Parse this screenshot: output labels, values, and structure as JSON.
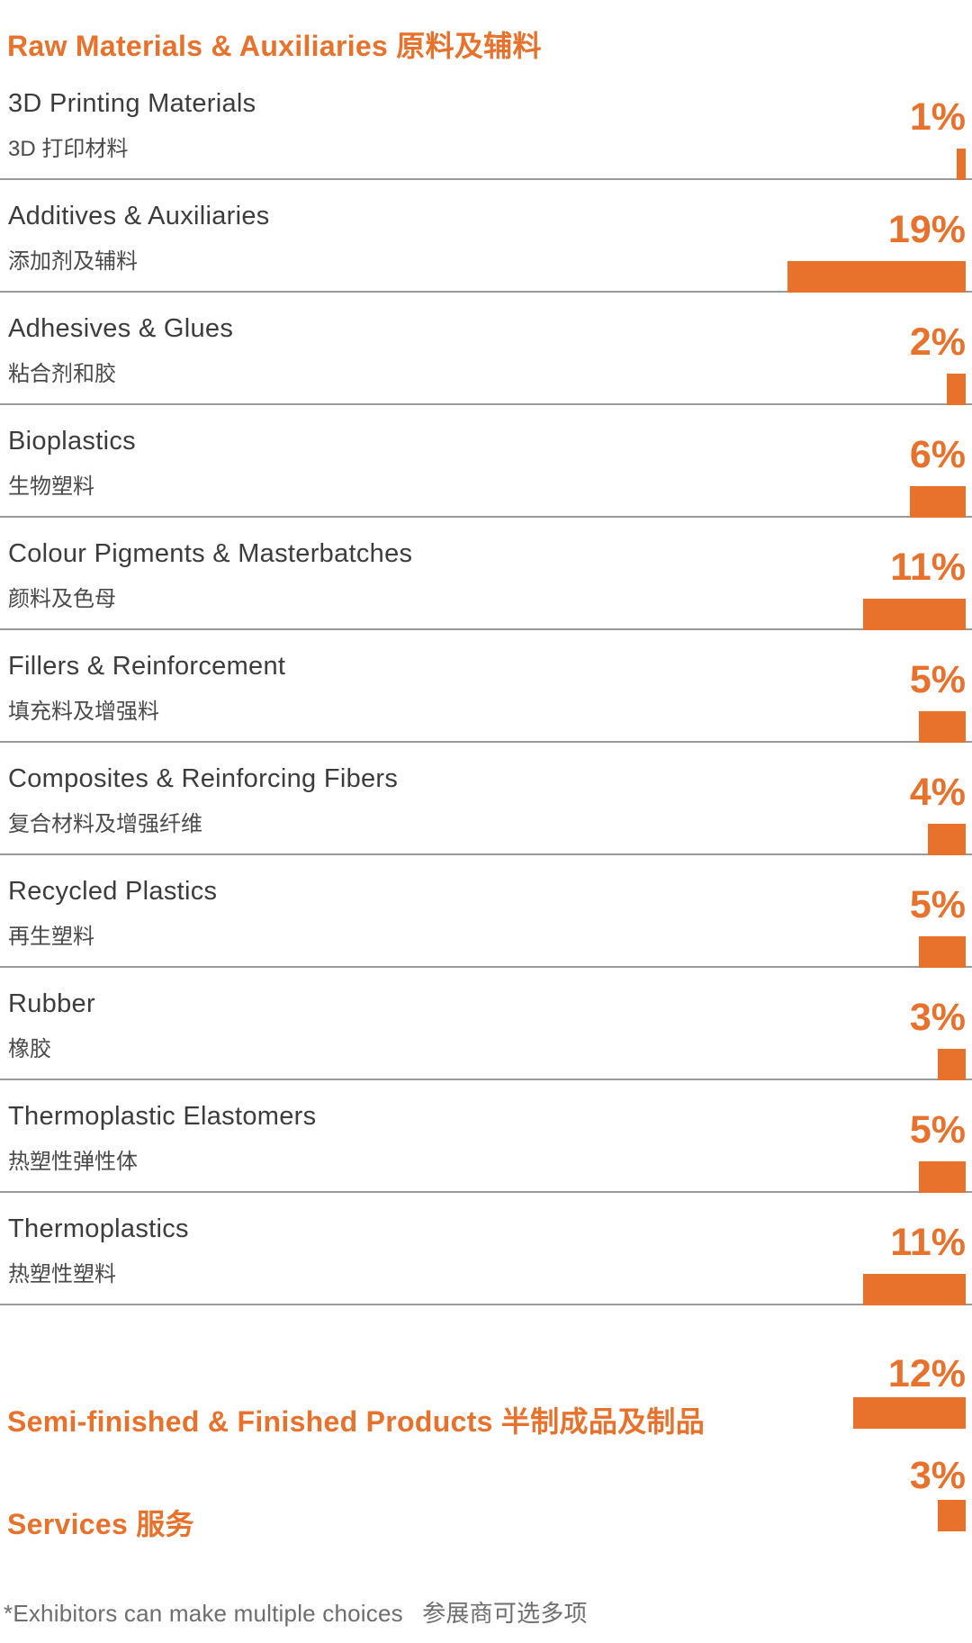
{
  "header": {
    "title": "Raw Materials & Auxiliaries 原料及辅料"
  },
  "colors": {
    "accent": "#E8712B",
    "row_title_text": "#3C3C3C",
    "row_subtitle_text": "#4A4A4A",
    "separator": "#9A9A9A",
    "footnote_text": "#6E6E6E"
  },
  "rows": [
    {
      "en": "3D Printing Materials",
      "zh": "3D 打印材料",
      "pct": 1,
      "pct_label": "1%"
    },
    {
      "en": "Additives & Auxiliaries",
      "zh": "添加剂及辅料",
      "pct": 19,
      "pct_label": "19%"
    },
    {
      "en": "Adhesives & Glues",
      "zh": "粘合剂和胶",
      "pct": 2,
      "pct_label": "2%"
    },
    {
      "en": "Bioplastics",
      "zh": "生物塑料",
      "pct": 6,
      "pct_label": "6%"
    },
    {
      "en": "Colour Pigments & Masterbatches",
      "zh": "颜料及色母",
      "pct": 11,
      "pct_label": "11%"
    },
    {
      "en": "Fillers & Reinforcement",
      "zh": "填充料及增强料",
      "pct": 5,
      "pct_label": "5%"
    },
    {
      "en": "Composites & Reinforcing Fibers",
      "zh": "复合材料及增强纤维",
      "pct": 4,
      "pct_label": "4%"
    },
    {
      "en": "Recycled Plastics",
      "zh": "再生塑料",
      "pct": 5,
      "pct_label": "5%"
    },
    {
      "en": "Rubber",
      "zh": "橡胶",
      "pct": 3,
      "pct_label": "3%"
    },
    {
      "en": "Thermoplastic Elastomers",
      "zh": "热塑性弹性体",
      "pct": 5,
      "pct_label": "5%"
    },
    {
      "en": "Thermoplastics",
      "zh": "热塑性塑料",
      "pct": 11,
      "pct_label": "11%"
    }
  ],
  "bottom": {
    "semi_finished": {
      "title": "Semi-finished & Finished Products 半制成品及制品",
      "pct": 12,
      "pct_label": "12%"
    },
    "services": {
      "title": "Services 服务",
      "pct": 3,
      "pct_label": "3%"
    }
  },
  "footnote": {
    "en": "*Exhibitors can make multiple choices",
    "zh": "参展商可选多项"
  },
  "chart_data": {
    "type": "bar",
    "orientation": "horizontal",
    "bars_right_aligned": true,
    "unit": "%",
    "title": "Raw Materials & Auxiliaries 原料及辅料",
    "categories": [
      "3D Printing Materials 3D 打印材料",
      "Additives & Auxiliaries 添加剂及辅料",
      "Adhesives & Glues 粘合剂和胶",
      "Bioplastics 生物塑料",
      "Colour Pigments & Masterbatches 颜料及色母",
      "Fillers & Reinforcement 填充料及增强料",
      "Composites & Reinforcing Fibers 复合材料及增强纤维",
      "Recycled Plastics 再生塑料",
      "Rubber 橡胶",
      "Thermoplastic Elastomers 热塑性弹性体",
      "Thermoplastics 热塑性塑料",
      "Semi-finished & Finished Products 半制成品及制品",
      "Services 服务"
    ],
    "values": [
      1,
      19,
      2,
      6,
      11,
      5,
      4,
      5,
      3,
      5,
      11,
      12,
      3
    ],
    "xlim": [
      0,
      19
    ],
    "grid": false,
    "legend": "none",
    "bar_color": "#E8712B",
    "note": "*Exhibitors can make multiple choices 参展商可选多项"
  }
}
